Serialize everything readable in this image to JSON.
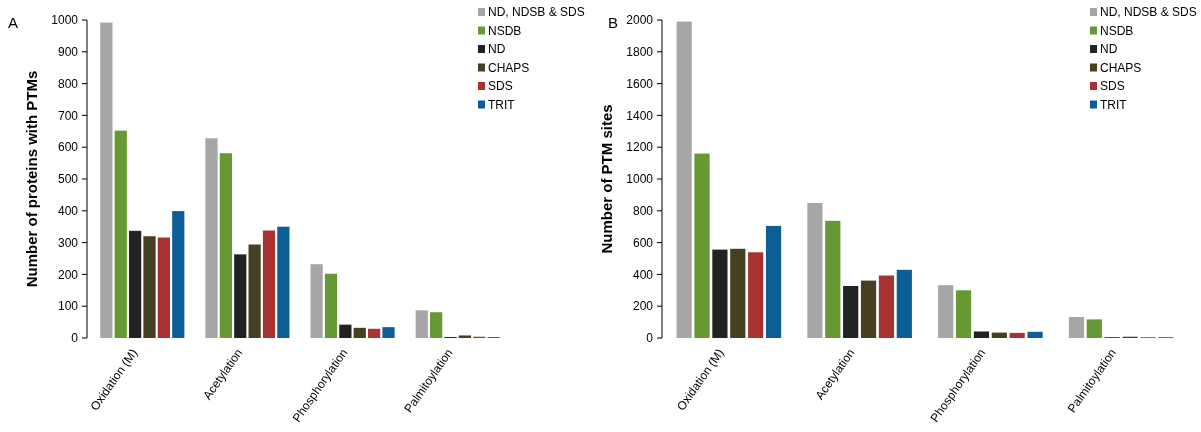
{
  "chart_data": [
    {
      "type": "bar",
      "title": "A",
      "ylabel": "Number of proteins with PTMs",
      "categories": [
        "Oxidation (M)",
        "Acetylation",
        "Phosphorylation",
        "Palmitoylation"
      ],
      "ylim": [
        0,
        1000
      ],
      "yticks": [
        0,
        100,
        200,
        300,
        400,
        500,
        600,
        700,
        800,
        900,
        1000
      ],
      "grid": false,
      "legend": "top right",
      "series": [
        {
          "name": "ND, NDSB & SDS",
          "color": "#a6a6a6",
          "values": [
            992,
            628,
            232,
            87
          ]
        },
        {
          "name": "NSDB",
          "color": "#669933",
          "values": [
            652,
            581,
            202,
            81
          ]
        },
        {
          "name": "ND",
          "color": "#222222",
          "values": [
            337,
            263,
            42,
            3
          ]
        },
        {
          "name": "CHAPS",
          "color": "#463f22",
          "values": [
            320,
            294,
            32,
            8
          ]
        },
        {
          "name": "SDS",
          "color": "#a83232",
          "values": [
            316,
            338,
            29,
            4
          ]
        },
        {
          "name": "TRIT",
          "color": "#0b5f96",
          "values": [
            399,
            350,
            34,
            3
          ]
        }
      ]
    },
    {
      "type": "bar",
      "title": "B",
      "ylabel": "Number of PTM sites",
      "categories": [
        "Oxidation (M)",
        "Acetylation",
        "Phosphorylation",
        "Palmitoylation"
      ],
      "ylim": [
        0,
        2000
      ],
      "yticks": [
        0,
        200,
        400,
        600,
        800,
        1000,
        1200,
        1400,
        1600,
        1800,
        2000
      ],
      "grid": false,
      "legend": "top right",
      "series": [
        {
          "name": "ND, NDSB & SDS",
          "color": "#a6a6a6",
          "values": [
            1990,
            849,
            332,
            132
          ]
        },
        {
          "name": "NSDB",
          "color": "#669933",
          "values": [
            1160,
            737,
            300,
            117
          ]
        },
        {
          "name": "ND",
          "color": "#222222",
          "values": [
            556,
            327,
            41,
            5
          ]
        },
        {
          "name": "CHAPS",
          "color": "#463f22",
          "values": [
            561,
            361,
            34,
            8
          ]
        },
        {
          "name": "SDS",
          "color": "#a83232",
          "values": [
            539,
            393,
            32,
            5
          ]
        },
        {
          "name": "TRIT",
          "color": "#0b5f96",
          "values": [
            705,
            429,
            39,
            5
          ]
        }
      ]
    }
  ]
}
